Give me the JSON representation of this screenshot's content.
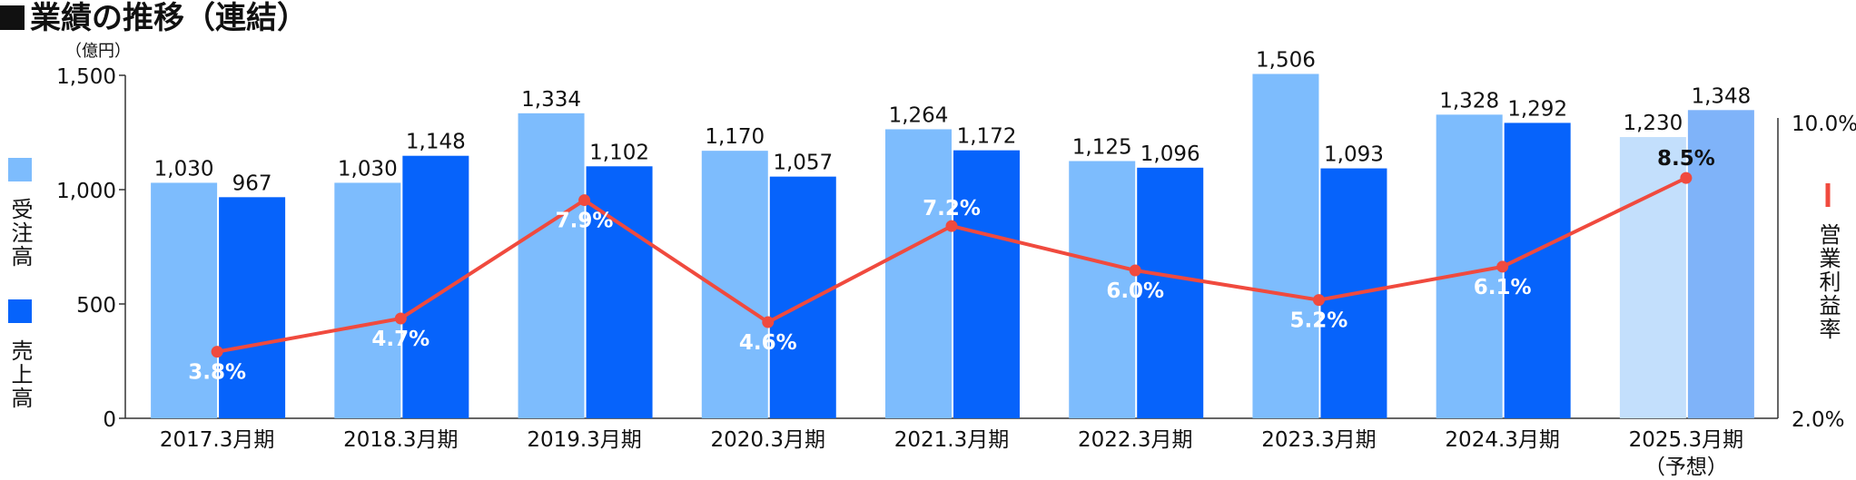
{
  "title": "業績の推移（連結）",
  "chart_data": {
    "type": "bar",
    "unit": "（億円）",
    "categories": [
      "2017.3月期",
      "2018.3月期",
      "2019.3月期",
      "2020.3月期",
      "2021.3月期",
      "2022.3月期",
      "2023.3月期",
      "2024.3月期",
      "2025.3月期"
    ],
    "category_notes": [
      "",
      "",
      "",
      "",
      "",
      "",
      "",
      "",
      "（予想）"
    ],
    "series": [
      {
        "name": "受注高",
        "color": "#7dbcfd",
        "forecast_color": "#c3dffc",
        "values": [
          1030,
          1030,
          1334,
          1170,
          1264,
          1125,
          1506,
          1328,
          1230
        ]
      },
      {
        "name": "売上高",
        "color": "#0663fb",
        "forecast_color": "#7fb3f9",
        "values": [
          967,
          1148,
          1102,
          1057,
          1172,
          1096,
          1093,
          1292,
          1348
        ]
      }
    ],
    "line_series": {
      "name": "営業利益率",
      "color": "#f04a3e",
      "values": [
        3.8,
        4.7,
        7.9,
        4.6,
        7.2,
        6.0,
        5.2,
        6.1,
        8.5
      ],
      "labels": [
        "3.8%",
        "4.7%",
        "7.9%",
        "4.6%",
        "7.2%",
        "6.0%",
        "5.2%",
        "6.1%",
        "8.5%"
      ]
    },
    "ylim": [
      0,
      1500
    ],
    "yticks": [
      0,
      500,
      1000,
      1500
    ],
    "ytick_labels": [
      "0",
      "500",
      "1,000",
      "1,500"
    ],
    "y2lim": [
      2.0,
      10.0
    ],
    "y2tick_labels": [
      "2.0%",
      "10.0%"
    ],
    "grid": false,
    "legend_placement": "left and right sides"
  }
}
